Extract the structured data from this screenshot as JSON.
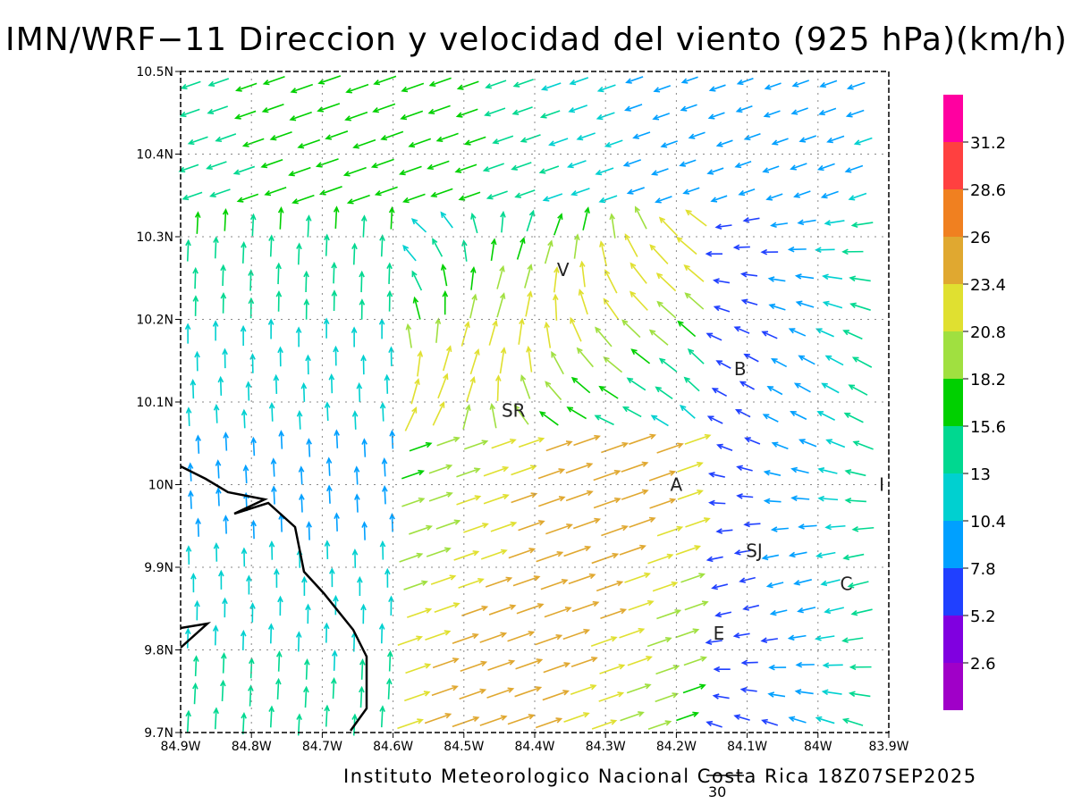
{
  "title": "IMN/WRF−11 Direccion y velocidad del viento (925 hPa)(km/h)",
  "credit": "Instituto Meteorologico Nacional Costa Rica 18Z07SEP2025",
  "reference_vector_label": "30",
  "map": {
    "lon_min": -84.9,
    "lon_max": -83.9,
    "lat_min": 9.7,
    "lat_max": 10.5,
    "x_ticks": [
      "84.9W",
      "84.8W",
      "84.7W",
      "84.6W",
      "84.5W",
      "84.4W",
      "84.3W",
      "84.2W",
      "84.1W",
      "84W",
      "83.9W"
    ],
    "y_ticks": [
      "9.7N",
      "9.8N",
      "9.9N",
      "10N",
      "10.1N",
      "10.2N",
      "10.3N",
      "10.4N",
      "10.5N"
    ],
    "cities": [
      {
        "label": "V",
        "lon": -84.36,
        "lat": 10.26
      },
      {
        "label": "B",
        "lon": -84.11,
        "lat": 10.14
      },
      {
        "label": "SR",
        "lon": -84.43,
        "lat": 10.09
      },
      {
        "label": "A",
        "lon": -84.2,
        "lat": 10.0
      },
      {
        "label": "I",
        "lon": -83.91,
        "lat": 10.0
      },
      {
        "label": "SJ",
        "lon": -84.09,
        "lat": 9.92
      },
      {
        "label": "C",
        "lon": -83.96,
        "lat": 9.88
      },
      {
        "label": "E",
        "lon": -84.14,
        "lat": 9.82
      }
    ]
  },
  "colorbar": {
    "labels": [
      "31.2",
      "28.6",
      "26",
      "23.4",
      "20.8",
      "18.2",
      "15.6",
      "13",
      "10.4",
      "7.8",
      "5.2",
      "2.6"
    ],
    "colors": [
      "#ff00a0",
      "#ff4040",
      "#f08020",
      "#e0a830",
      "#e0e030",
      "#a0e040",
      "#00d000",
      "#00d890",
      "#00d0d0",
      "#00a0ff",
      "#2040ff",
      "#8000e0",
      "#a000c8"
    ]
  },
  "coastline_color": "#000000"
}
